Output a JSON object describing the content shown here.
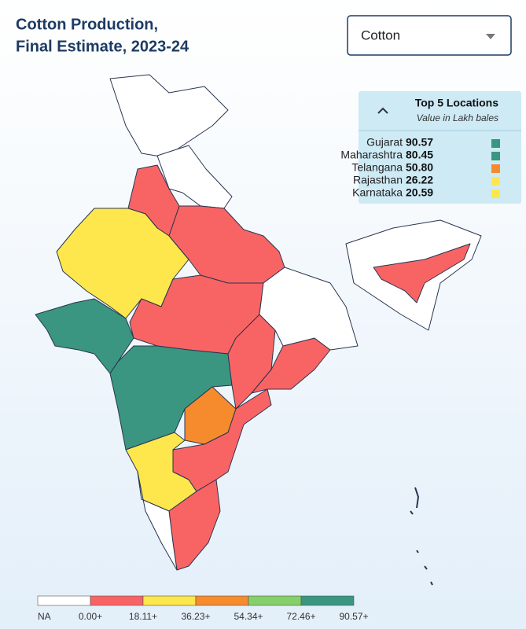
{
  "header": {
    "title_lines": [
      "Cotton Production,",
      "Final Estimate, 2023-24"
    ]
  },
  "dropdown": {
    "value": "Cotton"
  },
  "top_panel": {
    "title": "Top 5 Locations",
    "subtitle": "Value in Lakh bales",
    "items": [
      {
        "name": "Gujarat",
        "value": "90.57",
        "color": "#3a9680"
      },
      {
        "name": "Maharashtra",
        "value": "80.45",
        "color": "#3a9680"
      },
      {
        "name": "Telangana",
        "value": "50.80",
        "color": "#f68b2d"
      },
      {
        "name": "Rajasthan",
        "value": "26.22",
        "color": "#fde74c"
      },
      {
        "name": "Karnataka",
        "value": "20.59",
        "color": "#fde74c"
      }
    ]
  },
  "legend": {
    "colors": [
      "#ffffff",
      "#f86464",
      "#fde74c",
      "#f68b2d",
      "#86d06a",
      "#3a9680"
    ],
    "labels": [
      "NA",
      "0.00+",
      "18.11+",
      "36.23+",
      "54.34+",
      "72.46+",
      "90.57+"
    ]
  }
}
